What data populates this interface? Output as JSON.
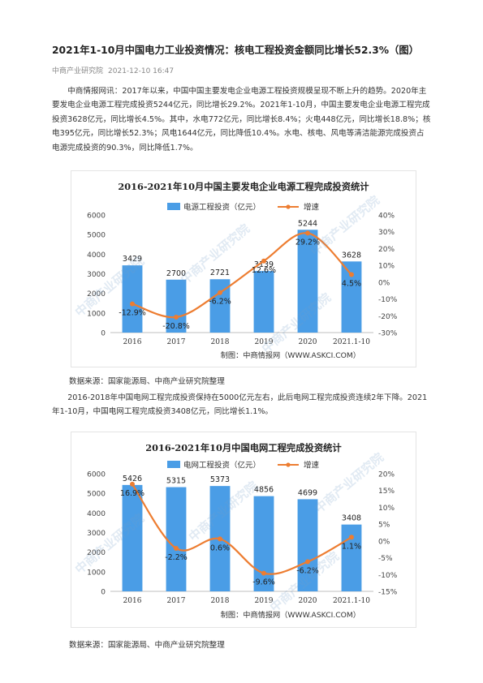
{
  "article": {
    "title": "2021年1-10月中国电力工业投资情况：核电工程投资金额同比增长52.3%（图）",
    "source": "中商产业研究院",
    "date": "2021-12-10 16:47",
    "paragraph1": "中商情报网讯：2017年以来，中国中国主要发电企业电源工程投资规模呈现不断上升的趋势。2020年主要发电企业电源工程完成投资5244亿元，同比增长29.2%。2021年1-10月，中国主要发电企业电源工程完成投资3628亿元，同比增长4.5%。其中，水电772亿元，同比增长8.4%；火电448亿元，同比增长18.8%；核电395亿元，同比增长52.3%；风电1644亿元，同比降低10.4%。水电、核电、风电等清洁能源完成投资占电源完成投资的90.3%，同比降低1.7%。",
    "source1": "数据来源：国家能源局、中商产业研究院整理",
    "paragraph2": "2016-2018年中国电网工程完成投资保持在5000亿元左右，此后电网工程完成投资连续2年下降。2021年1-10月，中国电网工程完成投资3408亿元，同比增长1.1%。",
    "source2": "数据来源：国家能源局、中商产业研究院整理"
  },
  "colors": {
    "bar": "#4a9de6",
    "line": "#ed7d31",
    "watermark": "#78a0c8"
  },
  "chart_data": [
    {
      "type": "bar",
      "title": "2016-2021年10月中国主要发电企业电源工程完成投资统计",
      "categories": [
        "2016",
        "2017",
        "2018",
        "2019",
        "2020",
        "2021.1-10"
      ],
      "series": [
        {
          "name": "电源工程投资（亿元）",
          "type": "bar",
          "axis": "left",
          "values": [
            3429,
            2700,
            2721,
            3139,
            5244,
            3628
          ]
        },
        {
          "name": "增速",
          "type": "line",
          "axis": "right",
          "values": [
            -12.9,
            -20.8,
            -6.2,
            12.6,
            29.2,
            4.5
          ]
        }
      ],
      "value_labels": [
        "3429",
        "2700",
        "2721",
        "3139",
        "5244",
        "3628"
      ],
      "rate_labels": [
        "-12.9%",
        "-20.8%",
        "-6.2%",
        "12.6%",
        "29.2%",
        "4.5%"
      ],
      "y_left": {
        "min": 0,
        "max": 6000,
        "step": 1000,
        "ticks": [
          "0",
          "1000",
          "2000",
          "3000",
          "4000",
          "5000",
          "6000"
        ]
      },
      "y_right": {
        "min": -30,
        "max": 40,
        "step": 10,
        "ticks": [
          "-30%",
          "-20%",
          "-10%",
          "0%",
          "10%",
          "20%",
          "30%",
          "40%"
        ]
      },
      "credit": "制图：中商情报网（WWW.ASKCI.COM）",
      "grid": false,
      "legend_position": "top"
    },
    {
      "type": "bar",
      "title": "2016-2021年10月中国电网工程完成投资统计",
      "categories": [
        "2016",
        "2017",
        "2018",
        "2019",
        "2020",
        "2021.1-10"
      ],
      "series": [
        {
          "name": "电网工程投资（亿元）",
          "type": "bar",
          "axis": "left",
          "values": [
            5426,
            5315,
            5373,
            4856,
            4699,
            3408
          ]
        },
        {
          "name": "增速",
          "type": "line",
          "axis": "right",
          "values": [
            16.9,
            -2.2,
            0.6,
            -9.6,
            -6.2,
            1.1
          ]
        }
      ],
      "value_labels": [
        "5426",
        "5315",
        "5373",
        "4856",
        "4699",
        "3408"
      ],
      "rate_labels": [
        "16.9%",
        "-2.2%",
        "0.6%",
        "-9.6%",
        "-6.2%",
        "1.1%"
      ],
      "y_left": {
        "min": 0,
        "max": 6000,
        "step": 1000,
        "ticks": [
          "0",
          "1000",
          "2000",
          "3000",
          "4000",
          "5000",
          "6000"
        ]
      },
      "y_right": {
        "min": -15,
        "max": 20,
        "step": 5,
        "ticks": [
          "-15%",
          "-10%",
          "-5%",
          "0%",
          "5%",
          "10%",
          "15%",
          "20%"
        ]
      },
      "credit": "制图：中商情报网（WWW.ASKCI.COM）",
      "grid": false,
      "legend_position": "top"
    }
  ],
  "watermark_text": "中商产业研究院"
}
